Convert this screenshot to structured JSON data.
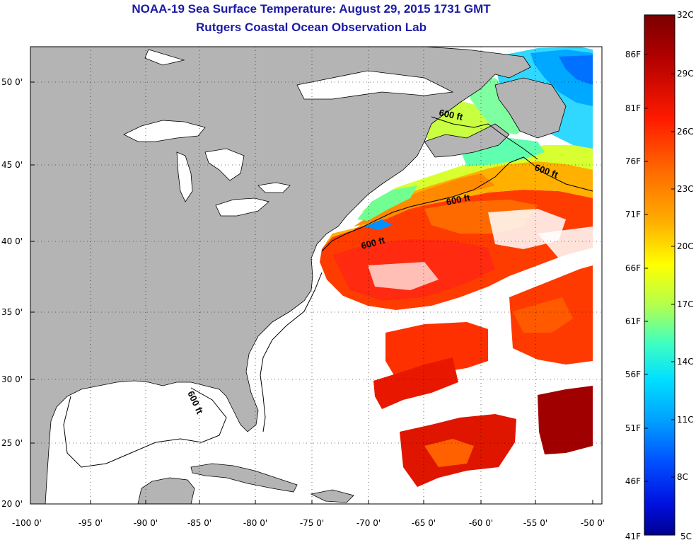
{
  "title": "NOAA-19 Sea Surface Temperature:  August 29, 2015 1731 GMT",
  "subtitle": "Rutgers Coastal Ocean Observation Lab",
  "lon_ticks": [
    "-100 0'",
    "-95 0'",
    "-90 0'",
    "-85 0'",
    "-80 0'",
    "-75 0'",
    "-70 0'",
    "-65 0'",
    "-60 0'",
    "-55 0'",
    "-50 0'"
  ],
  "lat_ticks": [
    "50 0'",
    "45 0'",
    "40 0'",
    "35 0'",
    "30 0'",
    "25 0'",
    "20 0'"
  ],
  "contour_labels": [
    "600 ft",
    "600 ft",
    "600 ft",
    "600 ft",
    "600 ft"
  ],
  "colorbar": {
    "celsius": [
      "32C",
      "29C",
      "26C",
      "23C",
      "20C",
      "17C",
      "14C",
      "11C",
      "8C",
      "5C"
    ],
    "fahrenheit": [
      "86F",
      "81F",
      "76F",
      "71F",
      "66F",
      "61F",
      "56F",
      "51F",
      "46F",
      "41F"
    ],
    "colors": [
      "#7a0000",
      "#c00000",
      "#ff2000",
      "#ff6a00",
      "#ffb000",
      "#ffff00",
      "#b0ff50",
      "#40ffc0",
      "#00d0ff",
      "#0080ff",
      "#0020ff",
      "#0000a0"
    ]
  },
  "colors": {
    "land": "#b4b4b4",
    "water": "#ffffff",
    "frame": "#000000",
    "title": "#1a1aa6"
  }
}
